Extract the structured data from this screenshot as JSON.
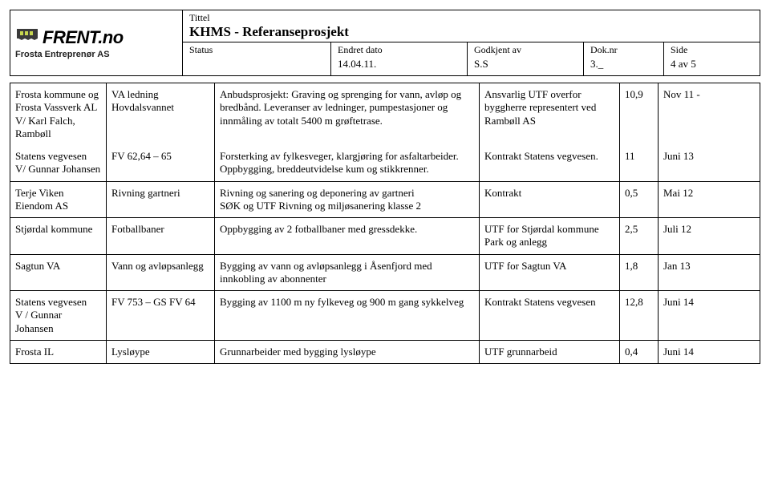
{
  "header": {
    "logo_text": "FRENT.no",
    "logo_sub": "Frosta Entreprenør AS",
    "title_label": "Tittel",
    "title": "KHMS - Referanseprosjekt",
    "status_label": "Status",
    "status_value": "",
    "date_label": "Endret dato",
    "date_value": "14.04.11.",
    "approved_label": "Godkjent av",
    "approved_value": "S.S",
    "doknr_label": "Dok.nr",
    "doknr_value": "3._",
    "page_label": "Side",
    "page_value": "4 av 5"
  },
  "table": {
    "rows": [
      {
        "sep": false,
        "c0": "Frosta kommune og Frosta Vassverk AL\nV/ Karl Falch, Rambøll",
        "c1": "VA ledning Hovdalsvannet",
        "c2": "Anbudsprosjekt: Graving og sprenging for vann, avløp og bredbånd. Leveranser av ledninger, pumpestasjoner og innmåling av totalt 5400 m grøftetrase.",
        "c3": "Ansvarlig UTF overfor byggherre representert ved Rambøll AS",
        "c4": "10,9",
        "c5": "Nov 11 -"
      },
      {
        "sep": false,
        "c0": "Statens vegvesen\nV/ Gunnar Johansen",
        "c1": "FV 62,64 – 65",
        "c2": "Forsterking av fylkesveger, klargjøring for asfaltarbeider. Oppbygging, breddeutvidelse kum og stikkrenner.",
        "c3": "Kontrakt Statens vegvesen.",
        "c4": "11",
        "c5": "Juni 13"
      },
      {
        "sep": true,
        "c0": "Terje Viken Eiendom AS",
        "c1": "Rivning gartneri",
        "c2": "Rivning og sanering og deponering av gartneri\nSØK og UTF Rivning og miljøsanering klasse 2",
        "c3": "Kontrakt",
        "c4": "0,5",
        "c5": "Mai 12"
      },
      {
        "sep": true,
        "c0": "Stjørdal kommune",
        "c1": "Fotballbaner",
        "c2": "Oppbygging av 2 fotballbaner med gressdekke.",
        "c3": "UTF for Stjørdal kommune Park og anlegg",
        "c4": "2,5",
        "c5": "Juli 12"
      },
      {
        "sep": true,
        "c0": "Sagtun VA",
        "c1": "Vann og avløpsanlegg",
        "c2": "Bygging av vann og avløpsanlegg i Åsenfjord med innkobling av abonnenter",
        "c3": "UTF for Sagtun VA",
        "c4": "1,8",
        "c5": "Jan 13"
      },
      {
        "sep": true,
        "c0": "Statens vegvesen\nV / Gunnar Johansen",
        "c1": "FV 753 – GS FV 64",
        "c2": "Bygging av 1100 m ny fylkeveg og 900 m gang sykkelveg",
        "c3": "Kontrakt Statens vegvesen",
        "c4": "12,8",
        "c5": "Juni 14"
      },
      {
        "sep": true,
        "c0": "Frosta IL",
        "c1": "Lysløype",
        "c2": "Grunnarbeider med bygging lysløype",
        "c3": "UTF grunnarbeid",
        "c4": "0,4",
        "c5": "Juni 14"
      }
    ]
  }
}
